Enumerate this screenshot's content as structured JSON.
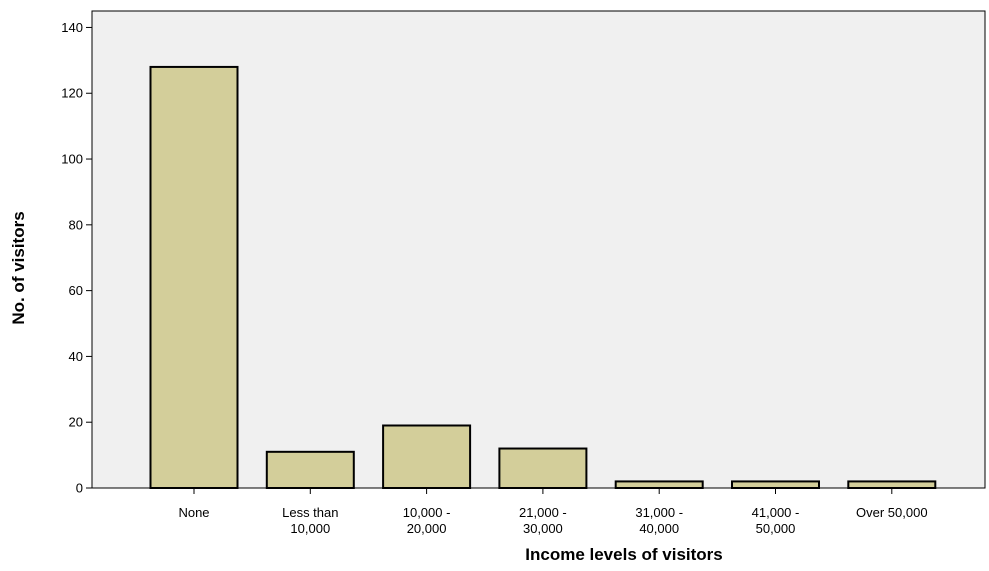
{
  "chart_data": {
    "type": "bar",
    "title": "",
    "xlabel": "Income levels of visitors",
    "ylabel": "No. of visitors",
    "categories": [
      [
        "None"
      ],
      [
        "Less than",
        "10,000"
      ],
      [
        "10,000 -",
        "20,000"
      ],
      [
        "21,000 -",
        "30,000"
      ],
      [
        "31,000 -",
        "40,000"
      ],
      [
        "41,000 -",
        "50,000"
      ],
      [
        "Over 50,000"
      ]
    ],
    "values": [
      128,
      11,
      19,
      12,
      2,
      2,
      2
    ],
    "ylim": [
      0,
      145
    ],
    "yticks": [
      0,
      20,
      40,
      60,
      80,
      100,
      120,
      140
    ],
    "grid": false,
    "legend": "none",
    "colors": {
      "bar_fill": "#d3ce9a",
      "bar_stroke": "#000000",
      "plot_background": "#f0f0f0"
    }
  }
}
